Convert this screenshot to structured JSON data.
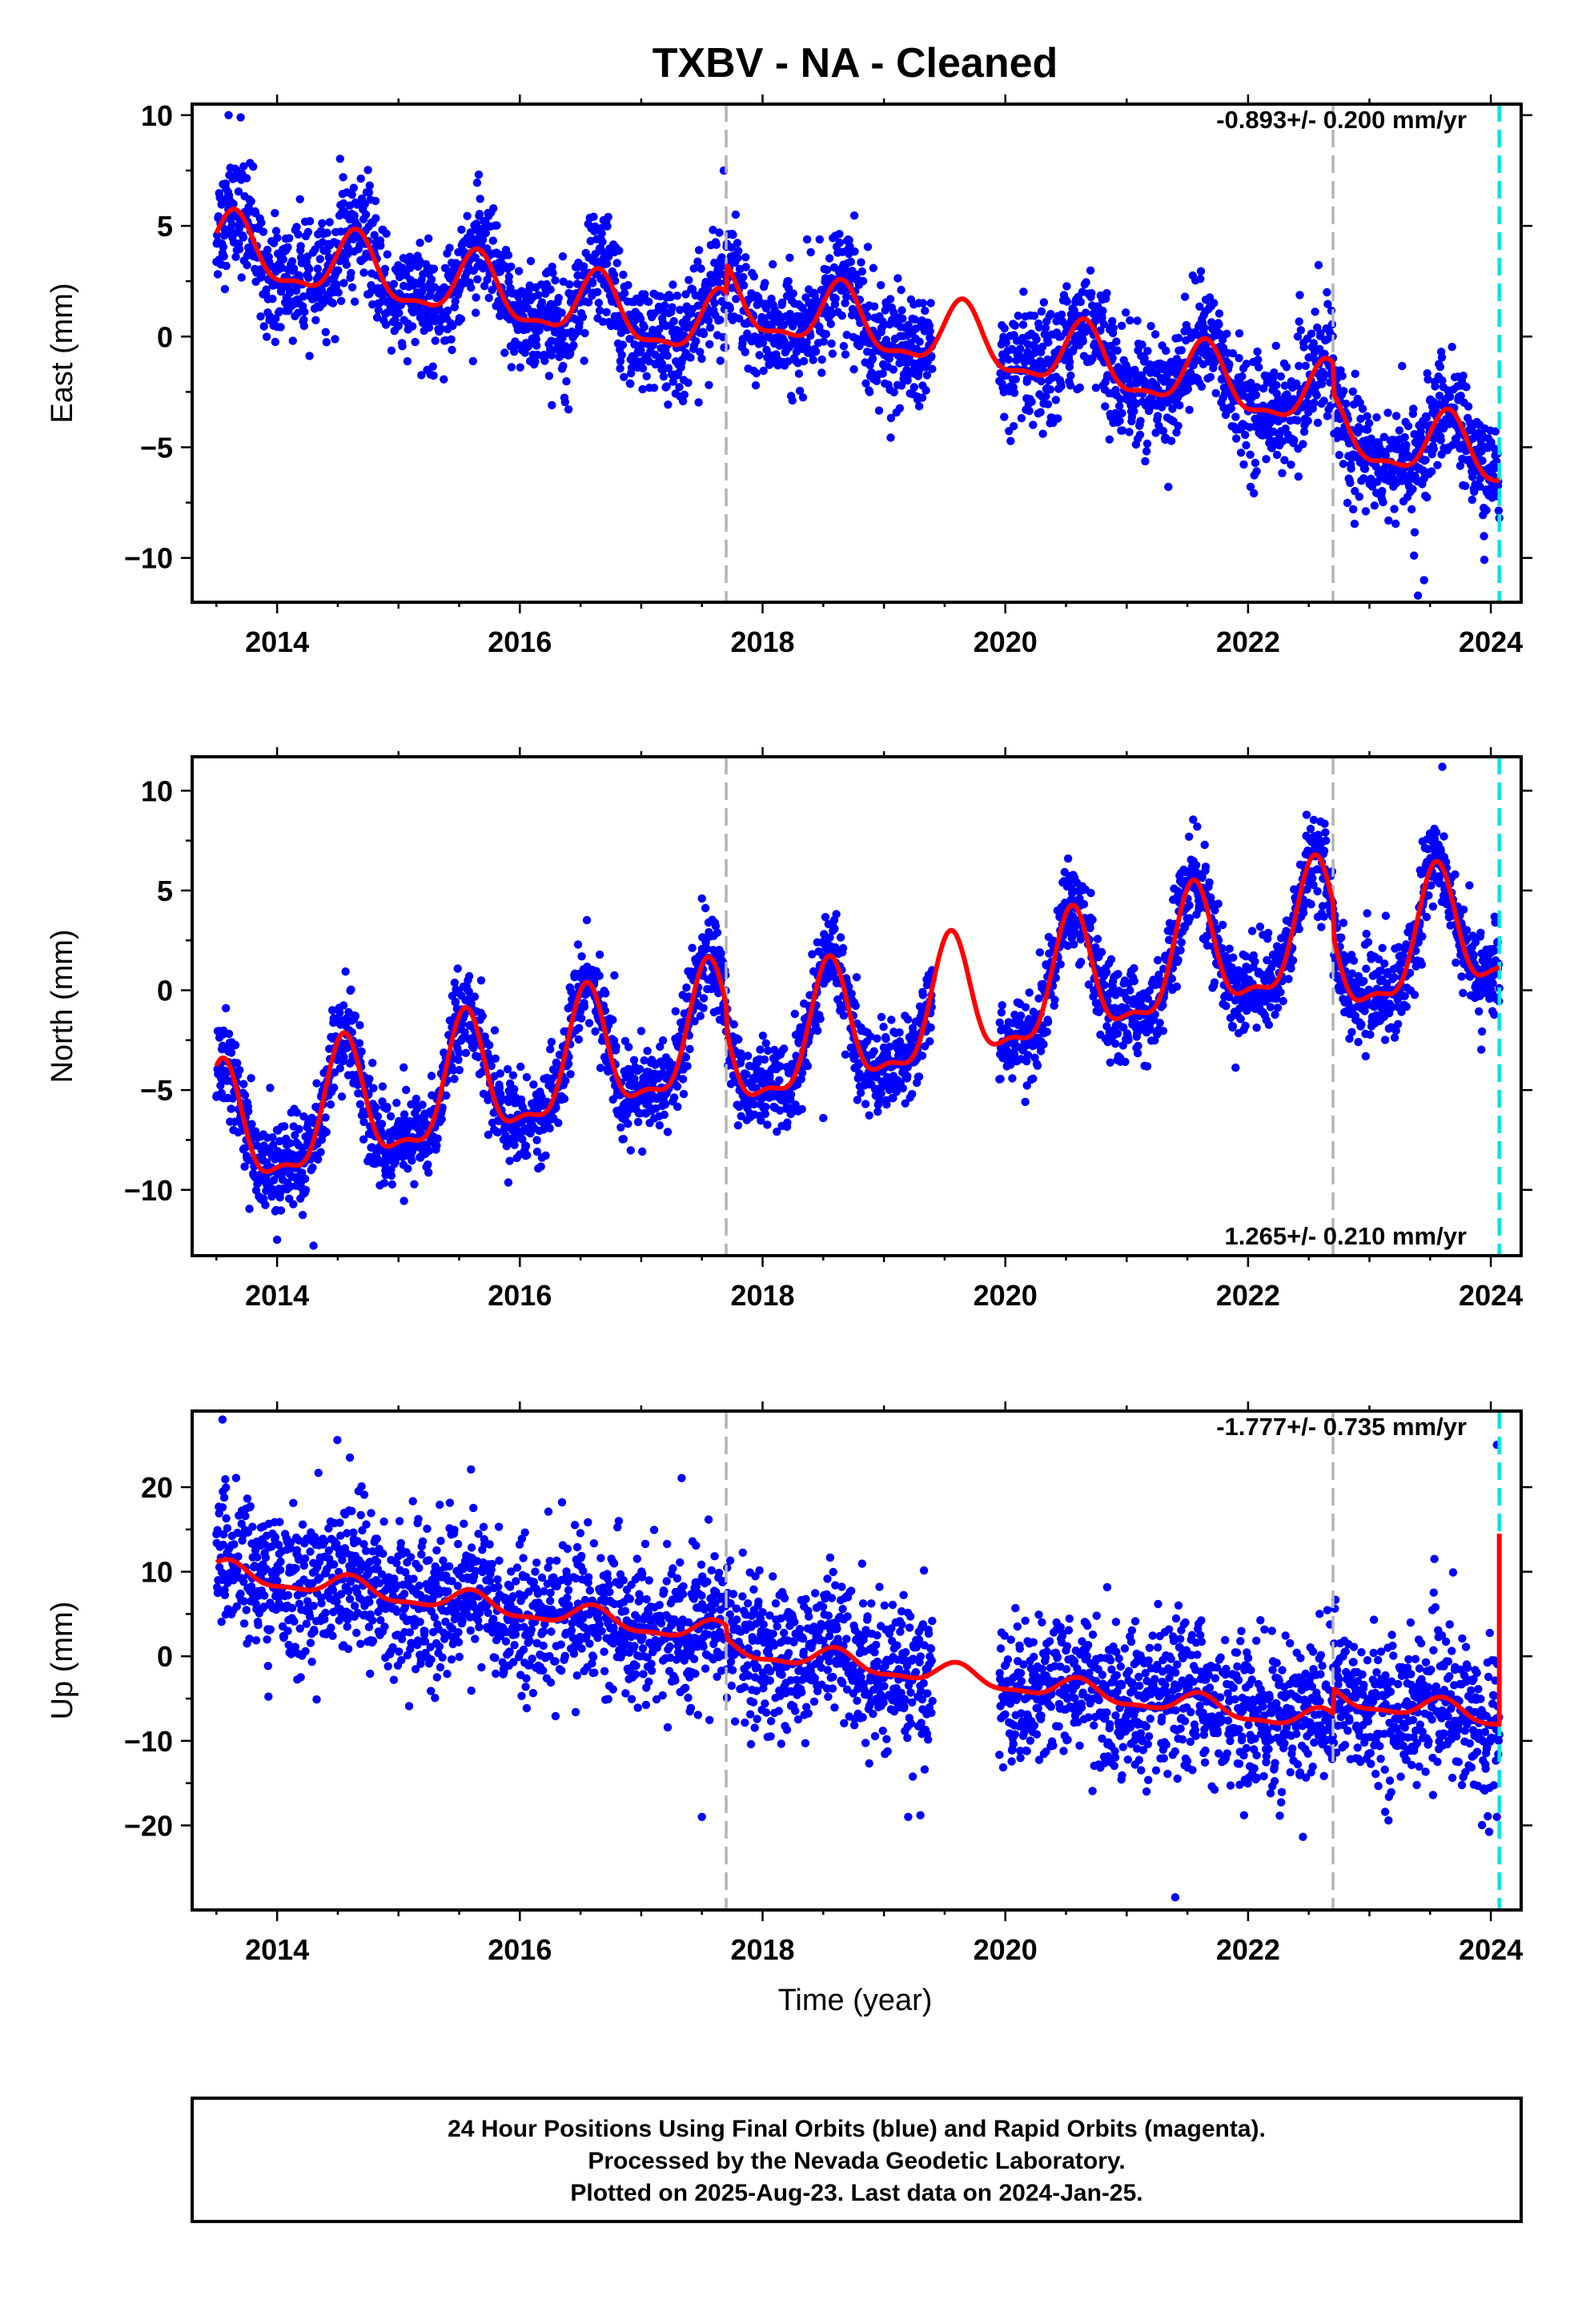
{
  "chart_data": {
    "type": "scatter",
    "title": "TXBV  - NA - Cleaned",
    "xlabel": "Time (year)",
    "xlim": [
      2013.3,
      2024.25
    ],
    "x_ticks": [
      "2014",
      "2016",
      "2018",
      "2020",
      "2022",
      "2024"
    ],
    "x_tick_values": [
      2014,
      2016,
      2018,
      2020,
      2022,
      2024
    ],
    "event_lines": {
      "gray_dashed": [
        2017.7,
        2022.7
      ],
      "cyan_dashed": [
        2024.07
      ]
    },
    "colors": {
      "final_orbits": "#0000ff",
      "rapid_orbits": "#ff00ff",
      "model": "#ff0000",
      "event_line": "#b4b4b4",
      "last_data_line": "#00e5e5"
    },
    "grid": false,
    "panels": [
      {
        "name": "east",
        "ylabel": "East (mm)",
        "ylim": [
          -12,
          10.5
        ],
        "y_ticks": [
          "10",
          "5",
          "0",
          "−5",
          "−10"
        ],
        "y_tick_values": [
          10,
          5,
          0,
          -5,
          -10
        ],
        "rate_label": "-0.893+/- 0.200 mm/yr",
        "rate_position": "top-right",
        "model": {
          "trend": [
            2013.5,
            4.0,
            -0.893
          ],
          "annual_amplitude": 1.4,
          "annual_peak": 0.65,
          "offsets": [
            [
              2017.7,
              1.3
            ],
            [
              2022.7,
              -1.4
            ]
          ],
          "noise_sd": 1.25
        },
        "outliers": [
          [
            2013.6,
            10.0
          ],
          [
            2013.7,
            9.9
          ],
          [
            2017.68,
            7.5
          ],
          [
            2023.4,
            -11.7
          ],
          [
            2023.45,
            -11.0
          ],
          [
            2022.65,
            2.0
          ],
          [
            2014.4,
            0.2
          ]
        ]
      },
      {
        "name": "north",
        "ylabel": "North (mm)",
        "ylim": [
          -13.3,
          11.7
        ],
        "y_ticks": [
          "10",
          "5",
          "0",
          "−5",
          "−10"
        ],
        "y_tick_values": [
          10,
          5,
          0,
          -5,
          -10
        ],
        "rate_label": "1.265+/- 0.210 mm/yr",
        "rate_position": "bottom-right",
        "model": {
          "trend": [
            2013.5,
            -7.5,
            1.265
          ],
          "annual_amplitude": 3.0,
          "annual_peak": 0.55,
          "offsets": [
            [
              2017.7,
              -1.2
            ],
            [
              2022.7,
              -1.6
            ]
          ],
          "noise_sd": 1.1
        },
        "outliers": [
          [
            2014.0,
            -12.5
          ],
          [
            2014.3,
            -12.8
          ],
          [
            2018.5,
            -6.4
          ],
          [
            2023.6,
            11.2
          ],
          [
            2017.5,
            4.6
          ]
        ]
      },
      {
        "name": "up",
        "ylabel": "Up (mm)",
        "ylim": [
          -30,
          29
        ],
        "y_ticks": [
          "20",
          "10",
          "0",
          "−10",
          "−20"
        ],
        "y_tick_values": [
          20,
          10,
          0,
          -10,
          -20
        ],
        "rate_label": "-1.777+/- 0.735 mm/yr",
        "rate_position": "top-right",
        "model": {
          "trend": [
            2013.5,
            10.0,
            -1.777
          ],
          "annual_amplitude": 1.2,
          "annual_peak": 0.6,
          "offsets": [
            [
              2017.7,
              -1.5
            ],
            [
              2022.7,
              3.0
            ]
          ],
          "noise_sd": 4.3
        },
        "outliers": [
          [
            2013.55,
            28.0
          ],
          [
            2021.4,
            -28.5
          ],
          [
            2024.05,
            25.0
          ],
          [
            2024.05,
            -19.0
          ],
          [
            2019.2,
            -19.0
          ],
          [
            2019.3,
            -18.8
          ],
          [
            2017.5,
            -19.0
          ],
          [
            2014.6,
            23.5
          ]
        ]
      }
    ],
    "data_gap": [
      2019.4,
      2019.95
    ]
  },
  "footer": {
    "line1": "24 Hour Positions Using Final Orbits (blue) and Rapid Orbits (magenta).",
    "line2": "Processed by the Nevada Geodetic Laboratory.",
    "line3": "Plotted on 2025-Aug-23. Last data on 2024-Jan-25."
  }
}
